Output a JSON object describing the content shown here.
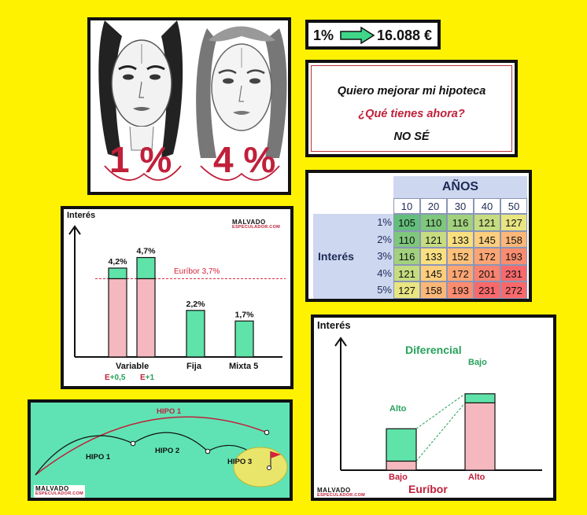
{
  "faces": {
    "left_pct": "1 %",
    "right_pct": "4 %"
  },
  "savings": {
    "rate": "1%",
    "amount": "16.088 €"
  },
  "dialog": {
    "line1": "Quiero mejorar mi hipoteca",
    "line2": "¿Qué tienes ahora?",
    "line3": "NO SÉ"
  },
  "table": {
    "years_header": "AÑOS",
    "row_header": "Interés",
    "years": [
      "10",
      "20",
      "30",
      "40",
      "50"
    ],
    "rows": [
      {
        "rate": "1%",
        "values": [
          "105",
          "110",
          "116",
          "121",
          "127"
        ],
        "colors": [
          "#63be7b",
          "#7fc77c",
          "#a2d17e",
          "#c5dc80",
          "#e8e582"
        ]
      },
      {
        "rate": "2%",
        "values": [
          "110",
          "121",
          "133",
          "145",
          "158"
        ],
        "colors": [
          "#7fc77c",
          "#c5dc80",
          "#f9df80",
          "#fdce7e",
          "#fcb778"
        ]
      },
      {
        "rate": "3%",
        "values": [
          "116",
          "133",
          "152",
          "172",
          "193"
        ],
        "colors": [
          "#a2d17e",
          "#f9df80",
          "#fec07a",
          "#fca574",
          "#fa8c6f"
        ]
      },
      {
        "rate": "4%",
        "values": [
          "121",
          "145",
          "172",
          "201",
          "231"
        ],
        "colors": [
          "#c5dc80",
          "#fdce7e",
          "#fca574",
          "#f98370",
          "#f8696b"
        ]
      },
      {
        "rate": "5%",
        "values": [
          "127",
          "158",
          "193",
          "231",
          "272"
        ],
        "colors": [
          "#e8e582",
          "#fcb778",
          "#fa8c6f",
          "#f8696b",
          "#f8696b"
        ]
      }
    ]
  },
  "brand": {
    "name": "MALVADO",
    "site": "ESPECULADOR.COM"
  },
  "bar_chart": {
    "ylabel": "Interés",
    "euribor_label": "Euríbor 3,7%",
    "categories": [
      "Variable",
      "Fija",
      "Mixta 5"
    ],
    "sub_labels": [
      {
        "e": "E",
        "plus": "+0,5"
      },
      {
        "e": "E",
        "plus": "+1"
      }
    ],
    "bar_labels": [
      "4,2%",
      "4,7%",
      "2,2%",
      "1,7%"
    ]
  },
  "chart_data": [
    {
      "type": "bar",
      "ylabel": "Interés",
      "categories": [
        "Variable E+0,5",
        "Variable E+1",
        "Fija",
        "Mixta 5"
      ],
      "series": [
        {
          "name": "Euríbor",
          "values": [
            3.7,
            3.7,
            0,
            0
          ]
        },
        {
          "name": "Diferencial",
          "values": [
            0.5,
            1.0,
            2.2,
            1.7
          ]
        }
      ],
      "reference_line": 3.7,
      "ylim": [
        0,
        5.5
      ],
      "colors": {
        "euribor": "#f4b8be",
        "spread": "#5fe3a8"
      }
    },
    {
      "type": "bar",
      "ylabel": "Interés",
      "xlabel": "Euríbor",
      "categories": [
        "Bajo",
        "Alto"
      ],
      "series": [
        {
          "name": "Euríbor",
          "values": [
            0.7,
            5.2
          ]
        },
        {
          "name": "Diferencial",
          "values": [
            2.5,
            0.7
          ]
        }
      ],
      "ylim": [
        0,
        8.5
      ]
    }
  ],
  "golf": {
    "labels": [
      "HIPO 1",
      "HIPO 1",
      "HIPO 2",
      "HIPO 3"
    ]
  },
  "diff_chart": {
    "ylabel": "Interés",
    "title": "Diferencial",
    "top_left": "Alto",
    "top_right": "Bajo",
    "bottom_left": "Bajo",
    "bottom_right": "Alto",
    "xlabel": "Euríbor"
  },
  "colors": {
    "background": "#fff200",
    "green": "#5fe3a8",
    "pink": "#f4b8be",
    "red": "#c0203a",
    "dark_green": "#26a15a"
  }
}
